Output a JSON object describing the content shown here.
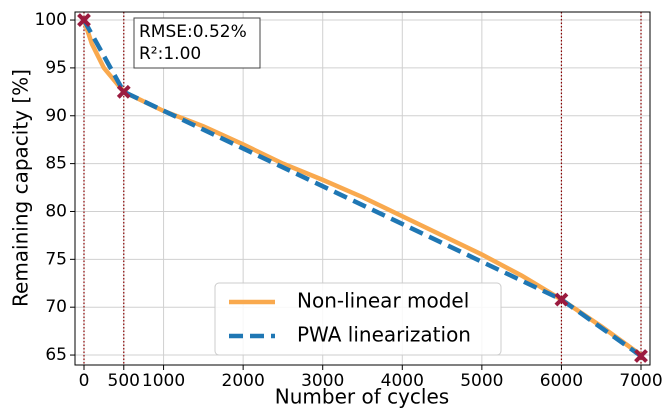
{
  "chart_data": {
    "type": "line",
    "xlabel": "Number of cycles",
    "ylabel": "Remaining capacity [%]",
    "xlim": [
      -113,
      7113
    ],
    "ylim": [
      63.96,
      100.84
    ],
    "xticks": [
      0,
      500,
      1000,
      2000,
      3000,
      4000,
      5000,
      6000,
      7000
    ],
    "yticks": [
      65,
      70,
      75,
      80,
      85,
      90,
      95,
      100
    ],
    "grid": true,
    "legend": "lower center",
    "series": [
      {
        "name": "Non-linear model",
        "color": "#f9a94e",
        "style": "solid",
        "x": [
          0,
          100,
          250,
          500,
          1000,
          1500,
          2000,
          2500,
          3000,
          3500,
          4000,
          4500,
          5000,
          5500,
          6000,
          6500,
          7000
        ],
        "values": [
          100,
          97.5,
          95,
          92.5,
          90.5,
          88.9,
          87,
          85,
          83.3,
          81.5,
          79.5,
          77.5,
          75.5,
          73.3,
          70.8,
          68,
          65
        ]
      },
      {
        "name": "PWA linearization",
        "color": "#1f77b4",
        "style": "dashed",
        "x": [
          0,
          500,
          6000,
          7000
        ],
        "values": [
          100,
          92.5,
          70.8,
          64.9
        ]
      }
    ],
    "breakpoints": {
      "color": "#9b1b3f",
      "line_color": "#8b0000",
      "x": [
        0,
        500,
        6000,
        7000
      ],
      "values": [
        100,
        92.5,
        70.8,
        64.9
      ]
    },
    "annotations": [
      "RMSE:0.52%",
      "R²:1.00"
    ]
  }
}
